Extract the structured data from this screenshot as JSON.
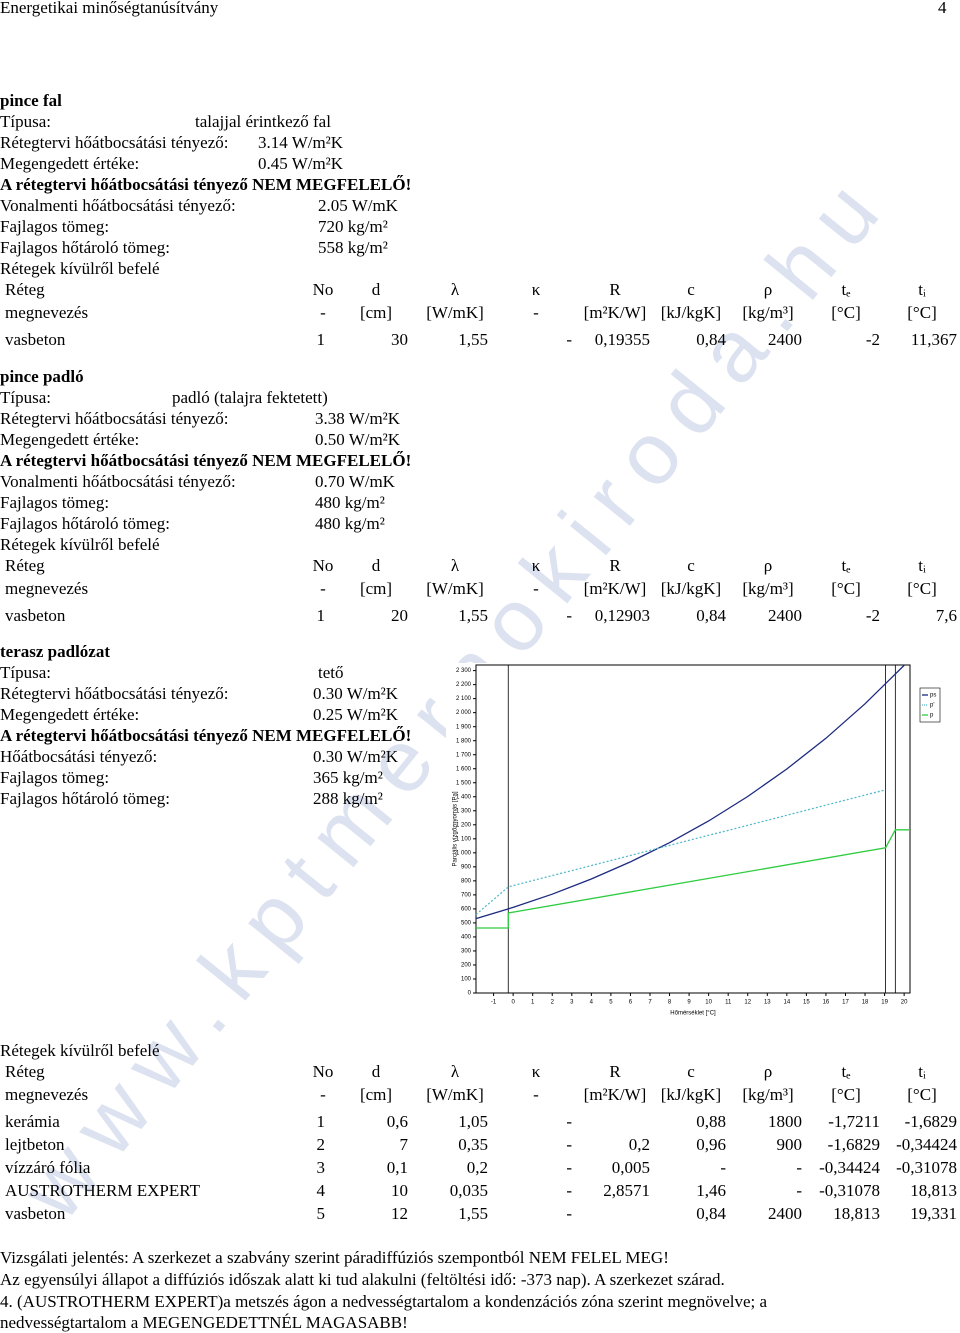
{
  "header": {
    "title": "Energetikai minőségtanúsítvány",
    "page": "4"
  },
  "watermark": "www.kptmernokiroda.hu",
  "sections": [
    {
      "title": "pince fal",
      "lines": [
        {
          "label": "Típusa:",
          "value": "talajjal érintkező fal"
        },
        {
          "label": "Rétegtervi hőátbocsátási tényező:",
          "value": "3.14 W/m²K"
        },
        {
          "label": "Megengedett értéke:",
          "value": "0.45 W/m²K"
        },
        {
          "verdict": "A rétegtervi hőátbocsátási tényező NEM MEGFELELŐ!"
        },
        {
          "label": "Vonalmenti hőátbocsátási tényező:",
          "value": "2.05 W/mK"
        },
        {
          "label": "Fajlagos tömeg:",
          "value": "720 kg/m²"
        },
        {
          "label": "Fajlagos hőtároló tömeg:",
          "value": "558 kg/m²"
        }
      ],
      "layers_title": "Rétegek kívülről befelé",
      "table": {
        "header": [
          "Réteg",
          "No",
          "d",
          "λ",
          "κ",
          "R",
          "c",
          "ρ",
          "tₑ",
          "tᵢ"
        ],
        "units": [
          "megnevezés",
          "-",
          "[cm]",
          "[W/mK]",
          "-",
          "[m²K/W]",
          "[kJ/kgK]",
          "[kg/m³]",
          "[°C]",
          "[°C]"
        ],
        "rows": [
          [
            "vasbeton",
            "1",
            "30",
            "1,55",
            "-",
            "0,19355",
            "0,84",
            "2400",
            "-2",
            "11,367"
          ]
        ]
      }
    },
    {
      "title": "pince padló",
      "lines": [
        {
          "label": "Típusa:",
          "value": "padló (talajra fektetett)"
        },
        {
          "label": "Rétegtervi hőátbocsátási tényező:",
          "value": "3.38 W/m²K"
        },
        {
          "label": "Megengedett értéke:",
          "value": "0.50 W/m²K"
        },
        {
          "verdict": "A rétegtervi hőátbocsátási tényező NEM MEGFELELŐ!"
        },
        {
          "label": "Vonalmenti hőátbocsátási tényező:",
          "value": "0.70 W/mK"
        },
        {
          "label": "Fajlagos tömeg:",
          "value": "480 kg/m²"
        },
        {
          "label": "Fajlagos hőtároló tömeg:",
          "value": "480 kg/m²"
        }
      ],
      "layers_title": "Rétegek kívülről befelé",
      "table": {
        "header": [
          "Réteg",
          "No",
          "d",
          "λ",
          "κ",
          "R",
          "c",
          "ρ",
          "tₑ",
          "tᵢ"
        ],
        "units": [
          "megnevezés",
          "-",
          "[cm]",
          "[W/mK]",
          "-",
          "[m²K/W]",
          "[kJ/kgK]",
          "[kg/m³]",
          "[°C]",
          "[°C]"
        ],
        "rows": [
          [
            "vasbeton",
            "1",
            "20",
            "1,55",
            "-",
            "0,12903",
            "0,84",
            "2400",
            "-2",
            "7,6"
          ]
        ]
      }
    },
    {
      "title": "terasz padlózat",
      "lines": [
        {
          "label": "Típusa:",
          "value": "tető"
        },
        {
          "label": "Rétegtervi hőátbocsátási tényező:",
          "value": "0.30 W/m²K"
        },
        {
          "label": "Megengedett értéke:",
          "value": "0.25 W/m²K"
        },
        {
          "verdict": "A rétegtervi hőátbocsátási tényező NEM MEGFELELŐ!"
        },
        {
          "label": "Hőátbocsátási tényező:",
          "value": "0.30 W/m²K"
        },
        {
          "label": "Fajlagos tömeg:",
          "value": "365 kg/m²"
        },
        {
          "label": "Fajlagos hőtároló tömeg:",
          "value": "288 kg/m²"
        }
      ],
      "layers_title": "Rétegek kívülről befelé",
      "table": {
        "header": [
          "Réteg",
          "No",
          "d",
          "λ",
          "κ",
          "R",
          "c",
          "ρ",
          "tₑ",
          "tᵢ"
        ],
        "units": [
          "megnevezés",
          "-",
          "[cm]",
          "[W/mK]",
          "-",
          "[m²K/W]",
          "[kJ/kgK]",
          "[kg/m³]",
          "[°C]",
          "[°C]"
        ],
        "rows": [
          [
            "kerámia",
            "1",
            "0,6",
            "1,05",
            "-",
            null,
            "0,88",
            "1800",
            "-1,7211",
            "-1,6829"
          ],
          [
            "lejtbeton",
            "2",
            "7",
            "0,35",
            "-",
            "0,2",
            "0,96",
            "900",
            "-1,6829",
            "-0,34424"
          ],
          [
            "vízzáró fólia",
            "3",
            "0,1",
            "0,2",
            "-",
            "0,005",
            "-",
            "-",
            "-0,34424",
            "-0,31078"
          ],
          [
            "AUSTROTHERM EXPERT",
            "4",
            "10",
            "0,035",
            "-",
            "2,8571",
            "1,46",
            "-",
            "-0,31078",
            "18,813"
          ],
          [
            "vasbeton",
            "5",
            "12",
            "1,55",
            "-",
            null,
            "0,84",
            "2400",
            "18,813",
            "19,331"
          ]
        ]
      }
    }
  ],
  "notes": [
    "Vizsgálati jelentés: A szerkezet a szabvány szerint páradiffúziós szempontból NEM FELEL MEG!",
    "Az egyensúlyi állapot a diffúziós időszak alatt ki tud alakulni (feltöltési idő: -373 nap). A szerkezet szárad.",
    "4. (AUSTROTHERM EXPERT)a metszés ágon a nedvességtartalom a kondenzációs zóna szerint megnövelve; a nedvességtartalom a MEGENGEDETTNÉL MAGASABB!"
  ],
  "chart_data": {
    "type": "line",
    "ylabel": "Parciális vízgőznyomás [Pa]",
    "xlabel": "Hőmérséklet [°C]",
    "xlim": [
      -1.9,
      20.3
    ],
    "ylim": [
      0,
      2340
    ],
    "xticks": [
      -1,
      0,
      1,
      2,
      3,
      4,
      5,
      6,
      7,
      8,
      9,
      10,
      11,
      12,
      13,
      14,
      15,
      16,
      17,
      18,
      19,
      20
    ],
    "yticks": [
      0,
      100,
      200,
      300,
      400,
      500,
      600,
      700,
      800,
      900,
      {
        "value": 1000,
        "label": "1 000"
      },
      {
        "value": 1100,
        "label": "1 100"
      },
      {
        "value": 1200,
        "label": "1 200"
      },
      {
        "value": 1300,
        "label": "1 300"
      },
      {
        "value": 1400,
        "label": "1 400"
      },
      {
        "value": 1500,
        "label": "1 500"
      },
      {
        "value": 1600,
        "label": "1 600"
      },
      {
        "value": 1700,
        "label": "1 700"
      },
      {
        "value": 1800,
        "label": "1 800"
      },
      {
        "value": 1900,
        "label": "1 900"
      },
      {
        "value": 2000,
        "label": "2 000"
      },
      {
        "value": 2100,
        "label": "2 100"
      },
      {
        "value": 2200,
        "label": "2 200"
      },
      {
        "value": 2300,
        "label": "2 300"
      }
    ],
    "layer_boundaries": [
      -0.25,
      19.05,
      19.55
    ],
    "series": [
      {
        "name": "ps",
        "color": "#1c2a80",
        "dash": false,
        "x": [
          -1.9,
          0,
          2,
          4,
          6,
          8,
          10,
          12,
          14,
          16,
          18,
          20
        ],
        "values": [
          531,
          611,
          705,
          813,
          935,
          1072,
          1227,
          1402,
          1598,
          1817,
          2063,
          2337
        ]
      },
      {
        "name": "p'",
        "color": "#55bbcc",
        "dash": true,
        "x": [
          -1.9,
          -0.25,
          19.05
        ],
        "values": [
          560,
          757,
          1450
        ]
      },
      {
        "name": "p",
        "color": "#2ecc40",
        "dash": false,
        "x": [
          -1.9,
          -0.25,
          -0.25,
          19.05,
          19.55,
          20.3
        ],
        "values": [
          464,
          464,
          571,
          1036,
          1164,
          1164
        ]
      }
    ]
  }
}
